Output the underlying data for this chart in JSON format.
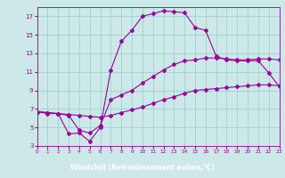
{
  "xlabel": "Windchill (Refroidissement éolien,°C)",
  "bg_color": "#cce8e8",
  "label_bar_color": "#880088",
  "line_color": "#990099",
  "grid_color": "#99cccc",
  "xlim": [
    0,
    23
  ],
  "ylim": [
    3,
    18
  ],
  "yticks": [
    3,
    5,
    7,
    9,
    11,
    13,
    15,
    17
  ],
  "xticks": [
    0,
    1,
    2,
    3,
    4,
    5,
    6,
    7,
    8,
    9,
    10,
    11,
    12,
    13,
    14,
    15,
    16,
    17,
    18,
    19,
    20,
    21,
    22,
    23
  ],
  "line1_x": [
    0,
    1,
    2,
    3,
    4,
    5,
    6,
    7,
    8,
    9,
    10,
    11,
    12,
    13,
    14,
    15,
    16,
    17,
    18,
    19,
    20,
    21,
    22,
    23
  ],
  "line1_y": [
    6.7,
    6.6,
    6.5,
    6.4,
    6.3,
    6.2,
    6.1,
    6.3,
    6.6,
    6.9,
    7.2,
    7.6,
    8.0,
    8.3,
    8.7,
    9.0,
    9.1,
    9.2,
    9.3,
    9.4,
    9.5,
    9.6,
    9.6,
    9.5
  ],
  "line2_x": [
    0,
    1,
    2,
    3,
    4,
    5,
    6,
    7,
    8,
    9,
    10,
    11,
    12,
    13,
    14,
    15,
    16,
    17,
    18,
    19,
    20,
    21,
    22,
    23
  ],
  "line2_y": [
    6.7,
    6.6,
    6.5,
    6.3,
    4.7,
    4.4,
    5.2,
    8.0,
    8.5,
    9.0,
    9.8,
    10.5,
    11.2,
    11.8,
    12.2,
    12.3,
    12.5,
    12.5,
    12.4,
    12.3,
    12.3,
    12.4,
    12.4,
    12.3
  ],
  "line3_x": [
    0,
    1,
    2,
    3,
    4,
    5,
    6,
    7,
    8,
    9,
    10,
    11,
    12,
    13,
    14,
    15,
    16,
    17,
    18,
    19,
    20,
    21,
    22,
    23
  ],
  "line3_y": [
    6.7,
    6.5,
    6.5,
    4.3,
    4.4,
    3.5,
    5.0,
    11.2,
    14.3,
    15.5,
    17.0,
    17.3,
    17.6,
    17.5,
    17.4,
    15.8,
    15.5,
    12.7,
    12.3,
    12.2,
    12.2,
    12.2,
    10.9,
    9.4
  ]
}
